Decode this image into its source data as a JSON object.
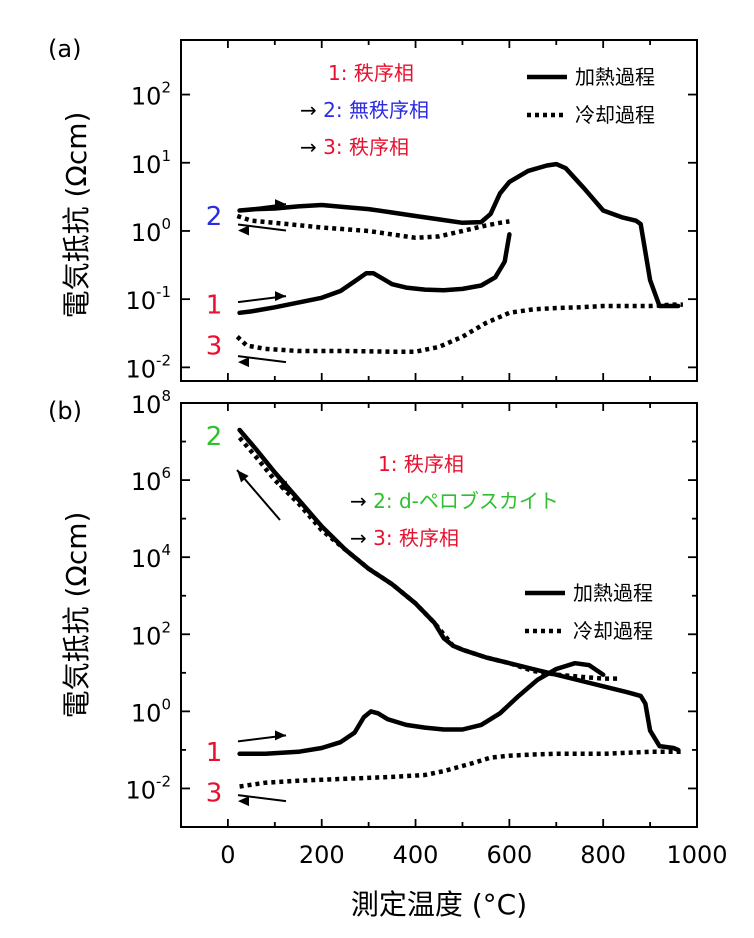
{
  "chart_data": [
    {
      "type": "line",
      "panel_label": "(a)",
      "ylabel": "電気抵抗 (Ωcm)",
      "xlabel": "",
      "xlim": [
        -100,
        1000
      ],
      "ylim_log10": [
        -2.2,
        2.8
      ],
      "yticks": [
        {
          "base": "10",
          "exp": "-2"
        },
        {
          "base": "10",
          "exp": "-1"
        },
        {
          "base": "10",
          "exp": "0"
        },
        {
          "base": "10",
          "exp": "1"
        },
        {
          "base": "10",
          "exp": "2"
        }
      ],
      "legend": {
        "placement": "top-right",
        "solid": "加熱過程",
        "dotted": "冷却過程"
      },
      "annotation": [
        {
          "text": "1: 秩序相",
          "color": "#e8102f"
        },
        {
          "text": "→ 2: 無秩序相",
          "color": "#2b2be0",
          "arrow_color": "#000000"
        },
        {
          "text": "→ 3: 秩序相",
          "color": "#e8102f",
          "arrow_color": "#000000"
        }
      ],
      "markers": [
        {
          "label": "2",
          "color": "#2b2be0"
        },
        {
          "label": "1",
          "color": "#e8102f"
        },
        {
          "label": "3",
          "color": "#e8102f"
        }
      ],
      "series": [
        {
          "name": "加熱過程",
          "style": "solid",
          "x": [
            25,
            50,
            100,
            150,
            200,
            240,
            270,
            295,
            310,
            325,
            350,
            380,
            420,
            460,
            500,
            540,
            570,
            590,
            600
          ],
          "y": [
            -1.2,
            -1.18,
            -1.12,
            -1.05,
            -0.98,
            -0.88,
            -0.74,
            -0.62,
            -0.62,
            -0.68,
            -0.78,
            -0.83,
            -0.86,
            -0.87,
            -0.85,
            -0.8,
            -0.68,
            -0.45,
            -0.05
          ]
        },
        {
          "name": "加熱過程",
          "style": "solid",
          "x": [
            25,
            60,
            100,
            150,
            200,
            250,
            300,
            350,
            400,
            450,
            500,
            540,
            560,
            580,
            600,
            640,
            680,
            700,
            720,
            760,
            800,
            840,
            870,
            880,
            900,
            920,
            950,
            960
          ],
          "y": [
            0.3,
            0.32,
            0.33,
            0.36,
            0.38,
            0.35,
            0.32,
            0.27,
            0.22,
            0.17,
            0.12,
            0.13,
            0.25,
            0.55,
            0.72,
            0.88,
            0.96,
            0.98,
            0.92,
            0.62,
            0.3,
            0.2,
            0.15,
            0.1,
            -0.72,
            -1.1,
            -1.1,
            -1.1
          ]
        },
        {
          "name": "冷却過程",
          "style": "dotted",
          "x": [
            20,
            50,
            100,
            200,
            300,
            400,
            450,
            500,
            550,
            580,
            600
          ],
          "y": [
            0.22,
            0.15,
            0.12,
            0.05,
            0.0,
            -0.1,
            -0.08,
            0.0,
            0.08,
            0.12,
            0.14
          ]
        },
        {
          "name": "冷却過程",
          "style": "dotted",
          "x": [
            20,
            40,
            80,
            150,
            250,
            350,
            400,
            450,
            500,
            550,
            600,
            650,
            700,
            750,
            800,
            850,
            900,
            950,
            970
          ],
          "y": [
            -1.55,
            -1.68,
            -1.73,
            -1.76,
            -1.76,
            -1.77,
            -1.77,
            -1.7,
            -1.55,
            -1.35,
            -1.2,
            -1.15,
            -1.13,
            -1.12,
            -1.1,
            -1.1,
            -1.1,
            -1.08,
            -1.08
          ]
        }
      ]
    },
    {
      "type": "line",
      "panel_label": "(b)",
      "ylabel": "電気抵抗 (Ωcm)",
      "xlabel": "測定温度 (°C)",
      "xlim": [
        -100,
        1000
      ],
      "ylim_log10": [
        -3,
        8
      ],
      "xticks": [
        "0",
        "200",
        "400",
        "600",
        "800",
        "1000"
      ],
      "yticks": [
        {
          "base": "10",
          "exp": "-2"
        },
        {
          "base": "10",
          "exp": "0"
        },
        {
          "base": "10",
          "exp": "2"
        },
        {
          "base": "10",
          "exp": "4"
        },
        {
          "base": "10",
          "exp": "6"
        },
        {
          "base": "10",
          "exp": "8"
        }
      ],
      "legend": {
        "placement": "middle-right",
        "solid": "加熱過程",
        "dotted": "冷却過程"
      },
      "annotation": [
        {
          "text": "1: 秩序相",
          "color": "#e8102f"
        },
        {
          "text": "→ 2: d-ペロブスカイト",
          "color": "#2fc02f",
          "arrow_color": "#000000"
        },
        {
          "text": "→ 3: 秩序相",
          "color": "#e8102f",
          "arrow_color": "#000000"
        }
      ],
      "markers": [
        {
          "label": "2",
          "color": "#2fc02f"
        },
        {
          "label": "1",
          "color": "#e8102f"
        },
        {
          "label": "3",
          "color": "#e8102f"
        }
      ],
      "series": [
        {
          "name": "加熱過程",
          "style": "solid",
          "x": [
            25,
            60,
            100,
            150,
            200,
            250,
            300,
            350,
            400,
            440,
            460,
            480,
            500,
            550,
            600,
            650,
            700,
            750,
            800,
            850,
            880,
            890,
            900,
            920,
            950,
            960
          ],
          "y": [
            7.3,
            6.8,
            6.2,
            5.5,
            4.8,
            4.2,
            3.7,
            3.3,
            2.8,
            2.3,
            1.9,
            1.7,
            1.6,
            1.4,
            1.25,
            1.1,
            0.95,
            0.8,
            0.65,
            0.5,
            0.4,
            0.2,
            -0.5,
            -0.9,
            -0.95,
            -1.0
          ]
        },
        {
          "name": "加熱過程",
          "style": "solid",
          "x": [
            25,
            80,
            150,
            200,
            240,
            270,
            290,
            305,
            320,
            340,
            380,
            420,
            460,
            500,
            540,
            580,
            620,
            660,
            700,
            740,
            770,
            800
          ],
          "y": [
            -1.1,
            -1.1,
            -1.05,
            -0.95,
            -0.8,
            -0.55,
            -0.15,
            0.0,
            -0.05,
            -0.2,
            -0.35,
            -0.42,
            -0.47,
            -0.47,
            -0.35,
            -0.05,
            0.4,
            0.82,
            1.1,
            1.25,
            1.2,
            0.95
          ]
        },
        {
          "name": "冷却過程",
          "style": "dotted",
          "x": [
            25,
            60,
            100,
            150,
            200,
            250,
            300,
            350,
            400,
            440,
            460,
            480,
            500,
            550,
            600,
            650,
            700,
            750,
            800,
            830
          ],
          "y": [
            7.1,
            6.6,
            6.0,
            5.4,
            4.7,
            4.2,
            3.7,
            3.3,
            2.8,
            2.3,
            2.0,
            1.7,
            1.6,
            1.4,
            1.25,
            1.05,
            0.95,
            0.9,
            0.85,
            0.85
          ]
        },
        {
          "name": "冷却過程",
          "style": "dotted",
          "x": [
            25,
            80,
            150,
            250,
            350,
            420,
            460,
            520,
            560,
            600,
            650,
            700,
            800,
            900,
            970
          ],
          "y": [
            -1.95,
            -1.85,
            -1.8,
            -1.75,
            -1.7,
            -1.65,
            -1.55,
            -1.35,
            -1.2,
            -1.15,
            -1.12,
            -1.1,
            -1.1,
            -1.05,
            -1.05
          ]
        }
      ]
    }
  ]
}
